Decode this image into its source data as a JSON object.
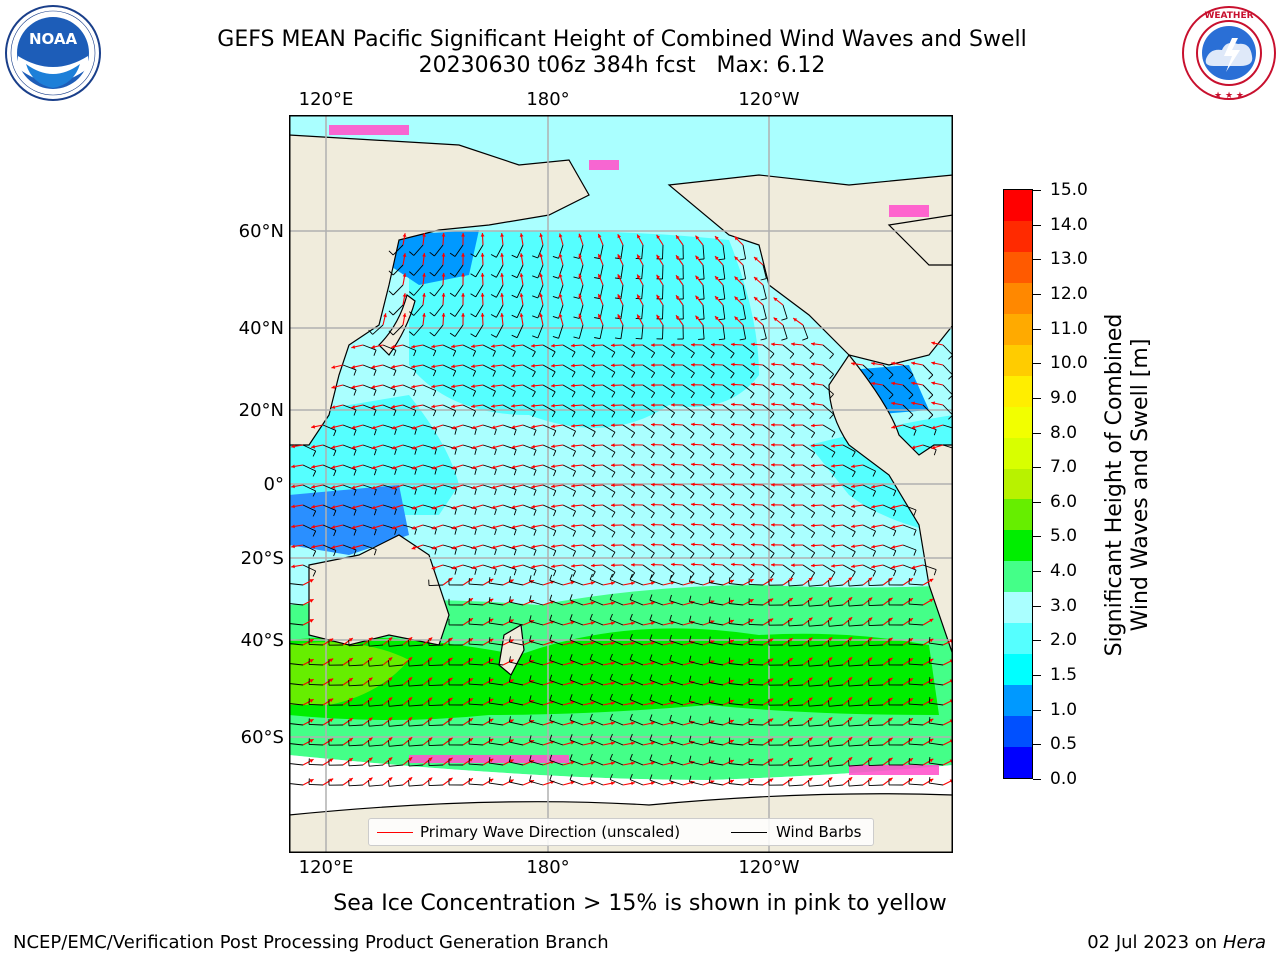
{
  "header": {
    "title_line1": "GEFS MEAN Pacific Significant Height of Combined Wind Waves and Swell",
    "title_line2": "20230630 t06z 384h fcst   Max: 6.12"
  },
  "logos": {
    "noaa": {
      "icon": "noaa-logo-icon",
      "text": "NOAA",
      "ring_text": "NATIONAL OCEANIC AND ATMOSPHERIC ADMINISTRATION · U.S. DEPARTMENT OF COMMERCE"
    },
    "nws": {
      "icon": "nws-logo-icon",
      "ring_text": "NATIONAL WEATHER SERVICE"
    }
  },
  "map": {
    "lon_labels": [
      "120°E",
      "180°",
      "120°W"
    ],
    "lat_labels": [
      "60°N",
      "40°N",
      "20°N",
      "0°",
      "20°S",
      "40°S",
      "60°S"
    ],
    "colors": {
      "land": "#f0ecdc",
      "grid": "#b0b0b0",
      "coast": "#000000",
      "wave_arrow": "#ff0000",
      "barb": "#000000"
    }
  },
  "legend": {
    "primary_wave": "Primary Wave Direction (unscaled)",
    "wind_barbs": "Wind Barbs"
  },
  "colorbar": {
    "title_line1": "Significant Height of Combined",
    "title_line2": "Wind Waves and Swell [m]",
    "ticks": [
      "15.0",
      "14.0",
      "13.0",
      "12.0",
      "11.0",
      "10.0",
      "9.0",
      "8.0",
      "7.0",
      "6.0",
      "5.0",
      "4.0",
      "3.0",
      "2.0",
      "1.5",
      "1.0",
      "0.5",
      "0.0"
    ],
    "colors_top_to_bottom": [
      "#ff0000",
      "#ff2a00",
      "#ff5a00",
      "#ff8800",
      "#ffaa00",
      "#ffcc00",
      "#ffee00",
      "#f2ff00",
      "#d8ff00",
      "#b8f200",
      "#66ee00",
      "#00ee00",
      "#44ff88",
      "#aaffff",
      "#55ffff",
      "#00ffff",
      "#0099ff",
      "#0050ff",
      "#0000ff"
    ]
  },
  "caption": "Sea Ice Concentration > 15% is shown in pink to yellow",
  "footer": {
    "left": "NCEP/EMC/Verification Post Processing Product Generation Branch",
    "right_date": "02 Jul 2023 on ",
    "right_host": "Hera"
  }
}
